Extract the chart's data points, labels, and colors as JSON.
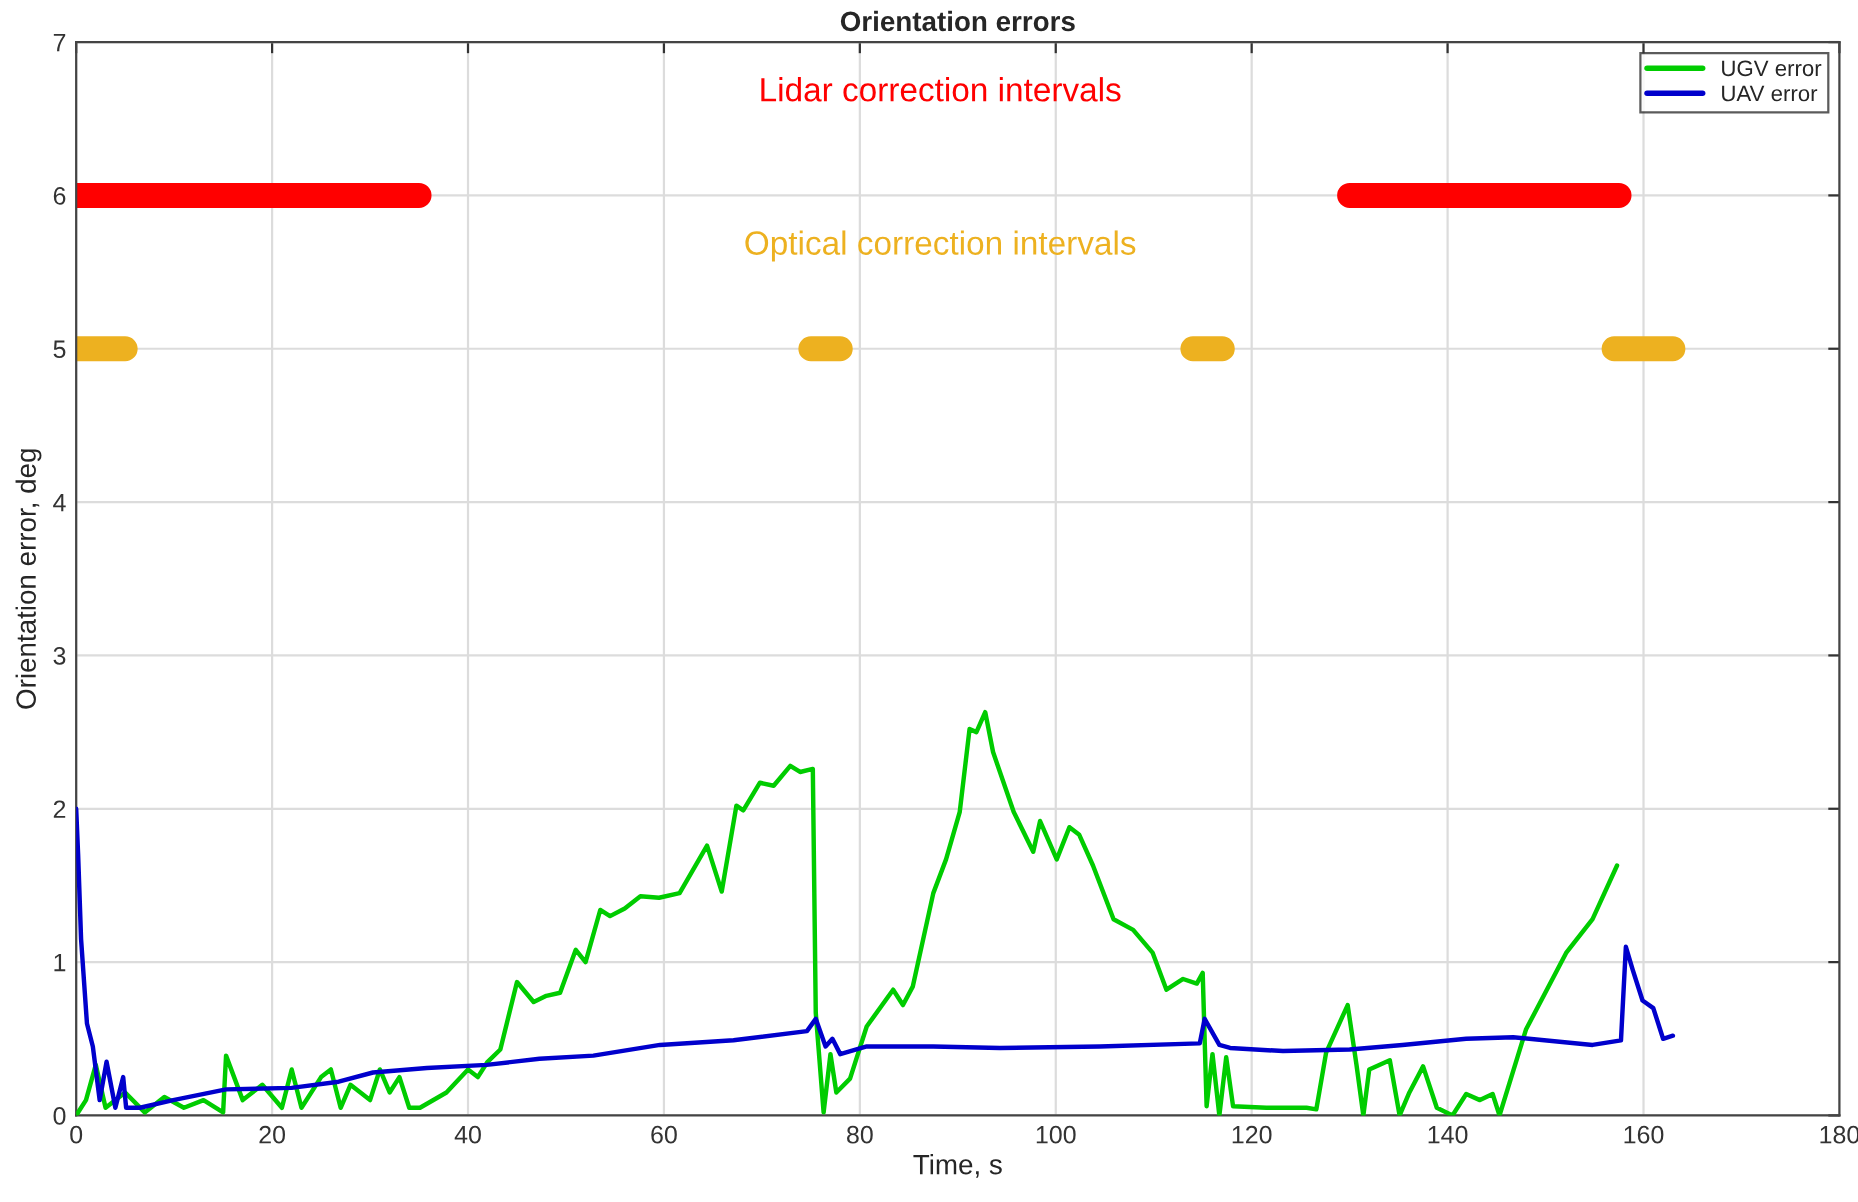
{
  "chart_data": {
    "type": "line",
    "title": "Orientation errors",
    "xlabel": "Time, s",
    "ylabel": "Orientation error, deg",
    "xlim": [
      0,
      180
    ],
    "xticks": [
      0,
      20,
      40,
      60,
      80,
      100,
      120,
      140,
      160,
      180
    ],
    "ylim": [
      0,
      7
    ],
    "yticks": [
      0,
      1,
      2,
      3,
      4,
      5,
      6,
      7
    ],
    "grid": true,
    "legend": "top right",
    "line_style": "solid",
    "marker": "none",
    "annotations": [
      "Lidar correction intervals",
      "Optical correction intervals"
    ],
    "series": [
      {
        "color": "#ff0000",
        "x": [
          0,
          35,
          82,
          130,
          157.5
        ],
        "values": [
          6,
          6,
          null,
          6,
          6
        ]
      },
      {
        "color": "#edb120",
        "x": [
          0,
          5,
          40,
          75,
          78,
          95,
          114,
          117,
          137,
          157,
          163
        ],
        "values": [
          5,
          5,
          null,
          5,
          5,
          null,
          5,
          5,
          null,
          5,
          5
        ]
      },
      {
        "name": "UGV error",
        "color": "#00cc00",
        "x": [
          0,
          1,
          2,
          3,
          5,
          7,
          9,
          11,
          13,
          15,
          15.3,
          17,
          19,
          21,
          22,
          23,
          25,
          26,
          27,
          28,
          30,
          31,
          32,
          33,
          34,
          35.1,
          37.8,
          40,
          41,
          42,
          43.3,
          45,
          46.7,
          48,
          49.4,
          51,
          52,
          53.5,
          54.5,
          56,
          57.6,
          59.5,
          61.6,
          64.4,
          65.9,
          67.4,
          68.1,
          69.8,
          71.2,
          72.9,
          73.9,
          75.2,
          75.5,
          76.3,
          77,
          77.6,
          79,
          80.7,
          83.4,
          84.4,
          85.4,
          87.5,
          88.8,
          90.2,
          91.2,
          91.9,
          92.8,
          93.6,
          95.7,
          97.7,
          98.4,
          100.1,
          101.4,
          102.4,
          103.8,
          105.9,
          107.9,
          109.9,
          111.3,
          113,
          114.4,
          115,
          115.4,
          116,
          116.7,
          117.4,
          118.1,
          121.5,
          125.6,
          126.6,
          127.6,
          129.8,
          130.7,
          131.4,
          132,
          134.1,
          135.1,
          136.1,
          137.5,
          138.9,
          140.5,
          141.9,
          143.3,
          144.6,
          145.3,
          148,
          152.1,
          154.8,
          157.3
        ],
        "values": [
          0.0,
          0.1,
          0.33,
          0.05,
          0.15,
          0.02,
          0.12,
          0.05,
          0.1,
          0.02,
          0.39,
          0.1,
          0.2,
          0.05,
          0.3,
          0.05,
          0.25,
          0.3,
          0.05,
          0.2,
          0.1,
          0.3,
          0.15,
          0.25,
          0.05,
          0.05,
          0.15,
          0.3,
          0.25,
          0.35,
          0.43,
          0.87,
          0.74,
          0.78,
          0.8,
          1.08,
          1.0,
          1.34,
          1.3,
          1.35,
          1.43,
          1.42,
          1.45,
          1.76,
          1.46,
          2.02,
          1.99,
          2.17,
          2.15,
          2.28,
          2.24,
          2.26,
          0.67,
          0.02,
          0.4,
          0.15,
          0.24,
          0.58,
          0.82,
          0.72,
          0.84,
          1.45,
          1.67,
          1.98,
          2.52,
          2.5,
          2.63,
          2.37,
          1.98,
          1.72,
          1.92,
          1.67,
          1.88,
          1.83,
          1.63,
          1.28,
          1.21,
          1.06,
          0.82,
          0.89,
          0.86,
          0.93,
          0.06,
          0.4,
          0.0,
          0.38,
          0.06,
          0.05,
          0.05,
          0.04,
          0.41,
          0.72,
          0.33,
          0.0,
          0.3,
          0.36,
          0.0,
          0.15,
          0.32,
          0.05,
          0.0,
          0.14,
          0.1,
          0.14,
          0.0,
          0.56,
          1.06,
          1.28,
          1.63
        ]
      },
      {
        "name": "UAV error",
        "color": "#0000cc",
        "x": [
          0,
          0.2,
          0.5,
          1.1,
          1.7,
          2.4,
          3.1,
          4,
          4.8,
          5.1,
          6.5,
          9.9,
          15.3,
          22,
          26.8,
          30.3,
          35.8,
          41.9,
          47.3,
          52.8,
          59.6,
          67.1,
          74.6,
          75.5,
          76.5,
          77.2,
          78,
          80.7,
          87.5,
          94.3,
          104.5,
          114.7,
          115.2,
          116.7,
          117.8,
          123.2,
          130,
          135.4,
          141.9,
          146.7,
          154.8,
          157.7,
          158.2,
          158.9,
          159.9,
          161,
          162,
          163
        ],
        "values": [
          2.0,
          1.7,
          1.15,
          0.6,
          0.45,
          0.1,
          0.35,
          0.05,
          0.25,
          0.05,
          0.05,
          0.1,
          0.17,
          0.18,
          0.22,
          0.28,
          0.31,
          0.33,
          0.37,
          0.39,
          0.46,
          0.49,
          0.55,
          0.63,
          0.45,
          0.5,
          0.4,
          0.45,
          0.45,
          0.44,
          0.45,
          0.47,
          0.63,
          0.46,
          0.44,
          0.42,
          0.43,
          0.46,
          0.5,
          0.51,
          0.46,
          0.49,
          1.1,
          0.95,
          0.75,
          0.7,
          0.5,
          0.52
        ]
      }
    ]
  }
}
